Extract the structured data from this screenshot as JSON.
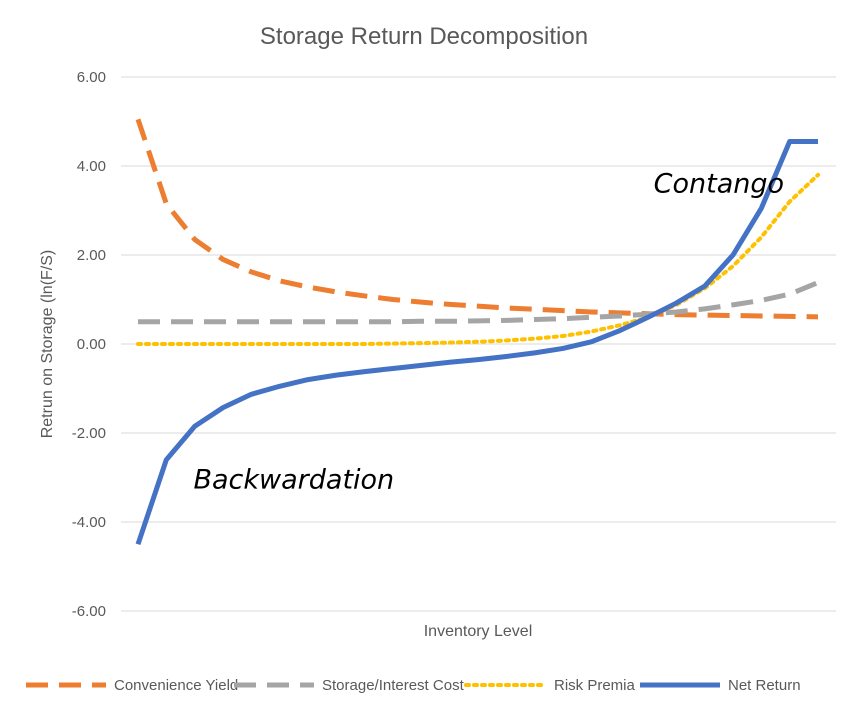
{
  "chart_data": {
    "type": "line",
    "title": "Storage Return Decomposition",
    "xlabel": "Inventory Level",
    "ylabel": "Retrun on Storage (ln(F/S)",
    "ylim": [
      -6,
      6
    ],
    "yticks": [
      6,
      4,
      2,
      0,
      -2,
      -4,
      -6
    ],
    "ytick_labels": [
      "6.00",
      "4.00",
      "2.00",
      "0.00",
      "-2.00",
      "-4.00",
      "-6.00"
    ],
    "grid": true,
    "legend_position": "bottom",
    "x": [
      1,
      2,
      3,
      4,
      5,
      6,
      7,
      8,
      9,
      10,
      11,
      12,
      13,
      14,
      15,
      16,
      17,
      18,
      19,
      20,
      21,
      22,
      23,
      24,
      25
    ],
    "series": [
      {
        "name": "Convenience Yield",
        "color": "#ED7D31",
        "dash": "dash",
        "values": [
          5.05,
          3.15,
          2.35,
          1.9,
          1.62,
          1.42,
          1.28,
          1.17,
          1.08,
          1.0,
          0.94,
          0.89,
          0.85,
          0.81,
          0.78,
          0.75,
          0.72,
          0.7,
          0.68,
          0.66,
          0.65,
          0.64,
          0.63,
          0.62,
          0.61
        ]
      },
      {
        "name": "Storage/Interest Cost",
        "color": "#A5A5A5",
        "dash": "dash",
        "values": [
          0.5,
          0.5,
          0.5,
          0.5,
          0.5,
          0.5,
          0.5,
          0.5,
          0.5,
          0.5,
          0.51,
          0.51,
          0.52,
          0.53,
          0.55,
          0.57,
          0.6,
          0.63,
          0.67,
          0.72,
          0.79,
          0.88,
          0.98,
          1.12,
          1.38
        ]
      },
      {
        "name": "Risk Premia",
        "color": "#FFC000",
        "dash": "dot",
        "values": [
          0.0,
          0.0,
          0.0,
          0.0,
          0.0,
          0.0,
          0.0,
          0.0,
          0.0,
          0.01,
          0.02,
          0.03,
          0.05,
          0.08,
          0.12,
          0.18,
          0.28,
          0.42,
          0.6,
          0.88,
          1.25,
          1.75,
          2.4,
          3.2,
          3.8
        ]
      },
      {
        "name": "Net Return",
        "color": "#4472C4",
        "dash": "solid",
        "values": [
          -4.5,
          -2.6,
          -1.85,
          -1.43,
          -1.13,
          -0.95,
          -0.8,
          -0.7,
          -0.62,
          -0.55,
          -0.48,
          -0.41,
          -0.35,
          -0.28,
          -0.2,
          -0.1,
          0.05,
          0.3,
          0.6,
          0.92,
          1.3,
          2.0,
          3.05,
          4.55,
          4.55
        ]
      }
    ],
    "annotations": [
      {
        "text": "Contango",
        "x": 21.5,
        "y": 3.4
      },
      {
        "text": "Backwardation",
        "x": 6.5,
        "y": -3.25
      }
    ]
  }
}
